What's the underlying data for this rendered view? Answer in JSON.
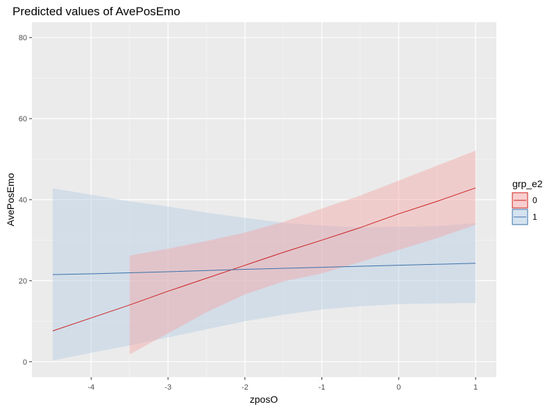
{
  "chart_data": {
    "type": "line",
    "title": "Predicted values of AvePosEmo",
    "xlabel": "zposO",
    "ylabel": "AvePosEmo",
    "xlim": [
      -4.77,
      1.27
    ],
    "ylim": [
      -3.8,
      83.8
    ],
    "x_ticks": [
      -4,
      -3,
      -2,
      -1,
      0,
      1
    ],
    "y_ticks": [
      0,
      20,
      40,
      60,
      80
    ],
    "grid": true,
    "legend": {
      "title": "grp_e2",
      "placement": "right"
    },
    "series": [
      {
        "name": "0",
        "color": "#cc1f1f",
        "fill": "#f4a6a6",
        "x": [
          -4.5,
          -3.5,
          -3.0,
          -2.5,
          -2.0,
          -1.5,
          -1.0,
          -0.5,
          0.0,
          0.5,
          1.0
        ],
        "y": [
          7.6,
          14.0,
          17.4,
          20.6,
          23.8,
          27.0,
          30.0,
          33.1,
          36.5,
          39.6,
          42.9
        ],
        "ci_x": [
          -3.5,
          -3.0,
          -2.5,
          -2.0,
          -1.5,
          -1.0,
          -0.5,
          0.0,
          0.5,
          1.0
        ],
        "ci_lower": [
          1.8,
          7.0,
          12.2,
          16.6,
          19.8,
          21.8,
          24.6,
          27.6,
          30.5,
          33.8
        ],
        "ci_upper": [
          26.2,
          27.9,
          29.8,
          31.9,
          34.5,
          37.8,
          41.0,
          44.7,
          48.4,
          52.1
        ]
      },
      {
        "name": "1",
        "color": "#3a6fa8",
        "fill": "#b3cce4",
        "x": [
          -4.5,
          -4.0,
          -3.0,
          -2.0,
          -1.0,
          0.0,
          1.0
        ],
        "y": [
          21.5,
          21.7,
          22.2,
          22.8,
          23.3,
          23.8,
          24.3
        ],
        "ci_x": [
          -4.5,
          -4.0,
          -3.5,
          -3.0,
          -2.5,
          -2.0,
          -1.5,
          -1.0,
          -0.5,
          0.0,
          0.5,
          1.0
        ],
        "ci_lower": [
          0.3,
          2.2,
          4.0,
          6.0,
          8.0,
          10.0,
          11.6,
          12.9,
          13.7,
          14.2,
          14.4,
          14.5
        ],
        "ci_upper": [
          42.8,
          41.2,
          39.6,
          38.3,
          36.8,
          35.5,
          34.3,
          33.6,
          33.2,
          33.3,
          33.5,
          34.2
        ]
      }
    ]
  }
}
